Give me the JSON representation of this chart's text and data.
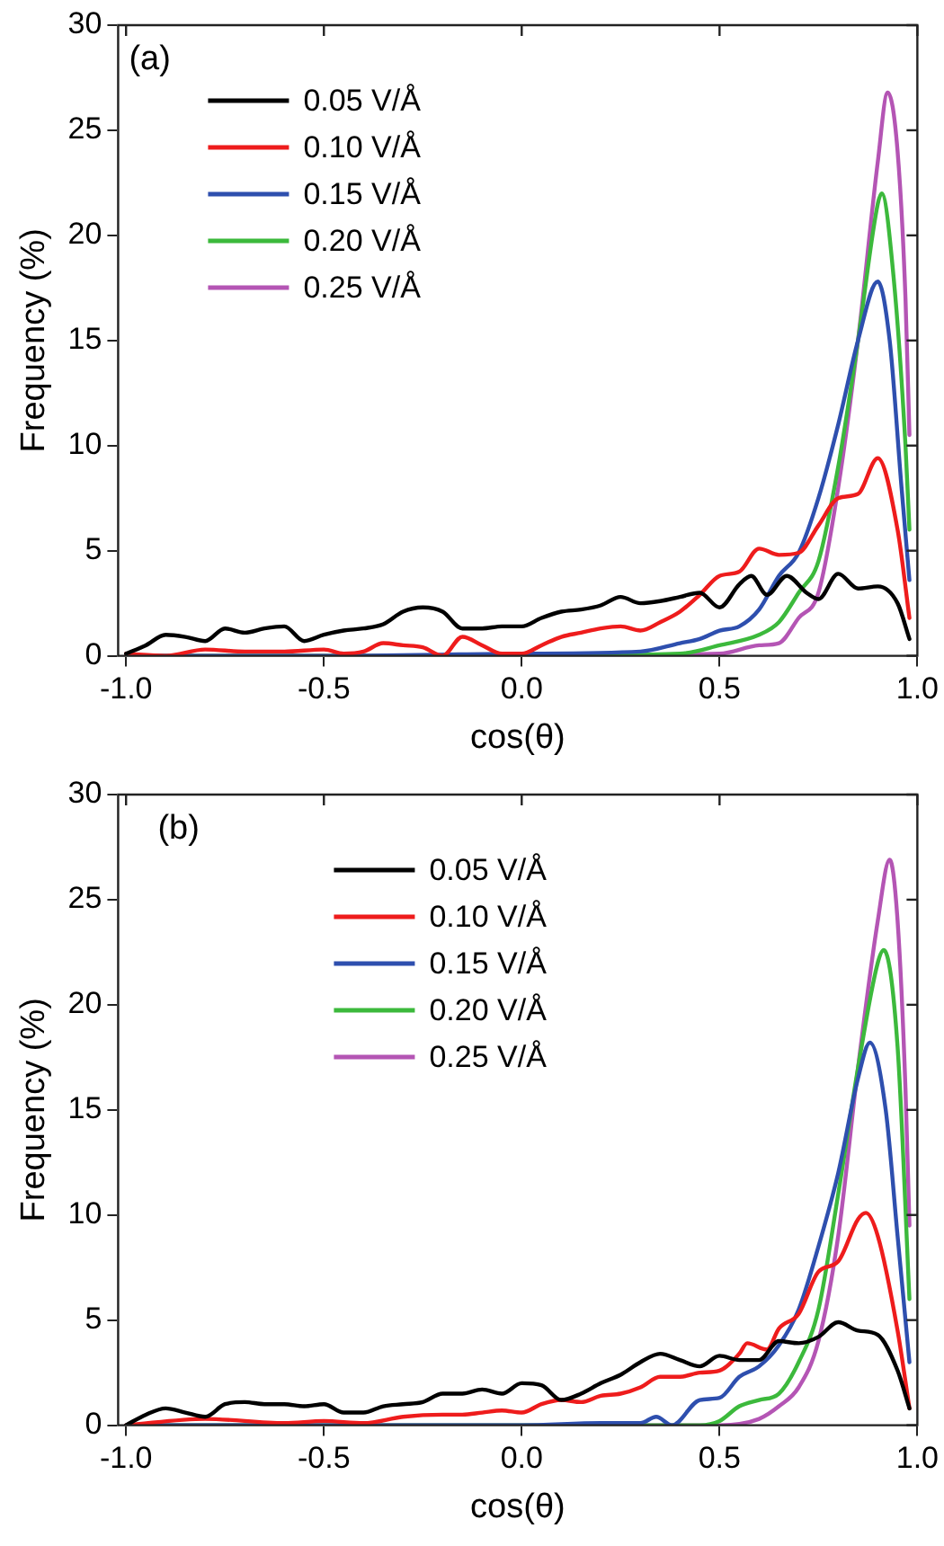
{
  "chart_data": [
    {
      "type": "line",
      "xlabel": "cos(θ)",
      "ylabel": "Frequency (%)",
      "annotations": [
        "(a)"
      ],
      "xlim": [
        -1.02,
        1.0
      ],
      "ylim": [
        0,
        30
      ],
      "xticks": [
        {
          "value": -1,
          "label": "-1.0"
        },
        {
          "value": -0.5,
          "label": "-0.5"
        },
        {
          "value": 0,
          "label": "0.0"
        },
        {
          "value": 0.5,
          "label": "0.5"
        },
        {
          "value": 1,
          "label": "1.0"
        }
      ],
      "yticks": [
        0,
        5,
        10,
        15,
        20,
        25,
        30
      ],
      "grid": false,
      "legend": "top left",
      "marker": "none",
      "line_style": "solid",
      "series": [
        {
          "name": "0.05 V/Å",
          "color": "#000000",
          "x": [
            -1,
            -0.95,
            -0.9,
            -0.85,
            -0.8,
            -0.75,
            -0.7,
            -0.65,
            -0.6,
            -0.55,
            -0.5,
            -0.45,
            -0.4,
            -0.35,
            -0.3,
            -0.25,
            -0.2,
            -0.15,
            -0.1,
            -0.05,
            0,
            0.05,
            0.1,
            0.15,
            0.2,
            0.25,
            0.3,
            0.35,
            0.4,
            0.45,
            0.5,
            0.55,
            0.58,
            0.62,
            0.67,
            0.72,
            0.75,
            0.8,
            0.85,
            0.9,
            0.95,
            0.98
          ],
          "values": [
            0.1,
            0.5,
            1.0,
            0.9,
            0.7,
            1.3,
            1.1,
            1.3,
            1.4,
            0.7,
            1.0,
            1.2,
            1.3,
            1.5,
            2.1,
            2.3,
            2.1,
            1.3,
            1.3,
            1.4,
            1.4,
            1.8,
            2.1,
            2.2,
            2.4,
            2.8,
            2.5,
            2.6,
            2.8,
            3.0,
            2.3,
            3.4,
            3.8,
            2.9,
            3.8,
            3.0,
            2.7,
            3.9,
            3.2,
            3.3,
            2.5,
            0.8
          ]
        },
        {
          "name": "0.10 V/Å",
          "color": "#ee1c1c",
          "x": [
            -1,
            -0.9,
            -0.8,
            -0.7,
            -0.6,
            -0.5,
            -0.45,
            -0.4,
            -0.35,
            -0.3,
            -0.25,
            -0.2,
            -0.15,
            -0.1,
            -0.05,
            0,
            0.05,
            0.1,
            0.15,
            0.2,
            0.25,
            0.3,
            0.35,
            0.4,
            0.45,
            0.5,
            0.55,
            0.6,
            0.65,
            0.7,
            0.75,
            0.8,
            0.85,
            0.9,
            0.95,
            0.98
          ],
          "values": [
            0.1,
            0,
            0.3,
            0.2,
            0.2,
            0.3,
            0.1,
            0.2,
            0.6,
            0.5,
            0.4,
            0,
            0.9,
            0.5,
            0.1,
            0.1,
            0.5,
            0.9,
            1.1,
            1.3,
            1.4,
            1.2,
            1.6,
            2.1,
            2.9,
            3.8,
            4.0,
            5.1,
            4.8,
            4.9,
            6.2,
            7.5,
            7.7,
            9.4,
            6.0,
            1.8
          ]
        },
        {
          "name": "0.15 V/Å",
          "color": "#2e4fae",
          "x": [
            -1,
            -0.5,
            0,
            0.3,
            0.4,
            0.45,
            0.5,
            0.55,
            0.6,
            0.65,
            0.7,
            0.75,
            0.8,
            0.85,
            0.9,
            0.93,
            0.96,
            0.98
          ],
          "values": [
            0,
            0,
            0.1,
            0.2,
            0.6,
            0.8,
            1.2,
            1.4,
            2.2,
            3.8,
            4.9,
            7.5,
            11,
            15,
            17.8,
            15,
            8,
            3.6
          ]
        },
        {
          "name": "0.20 V/Å",
          "color": "#3cb93c",
          "x": [
            -1,
            0,
            0.4,
            0.5,
            0.6,
            0.65,
            0.7,
            0.75,
            0.8,
            0.85,
            0.9,
            0.91,
            0.94,
            0.97,
            0.98
          ],
          "values": [
            0,
            0,
            0.1,
            0.5,
            1.0,
            1.6,
            3.0,
            4.5,
            9,
            15,
            21.5,
            22,
            18,
            10,
            6
          ]
        },
        {
          "name": "0.25 V/Å",
          "color": "#b455b4",
          "x": [
            -1,
            0,
            0.5,
            0.6,
            0.65,
            0.7,
            0.75,
            0.8,
            0.85,
            0.9,
            0.925,
            0.95,
            0.97,
            0.98
          ],
          "values": [
            0,
            0,
            0.1,
            0.5,
            0.6,
            1.8,
            3,
            8,
            15,
            23.5,
            26.8,
            24,
            17,
            10.5
          ]
        }
      ]
    },
    {
      "type": "line",
      "xlabel": "cos(θ)",
      "ylabel": "Frequency (%)",
      "annotations": [
        "(b)"
      ],
      "xlim": [
        -1.02,
        1.0
      ],
      "ylim": [
        0,
        30
      ],
      "xticks": [
        {
          "value": -1,
          "label": "-1.0"
        },
        {
          "value": -0.5,
          "label": "-0.5"
        },
        {
          "value": 0,
          "label": "0.0"
        },
        {
          "value": 0.5,
          "label": "0.5"
        },
        {
          "value": 1,
          "label": "1.0"
        }
      ],
      "yticks": [
        0,
        5,
        10,
        15,
        20,
        25,
        30
      ],
      "grid": false,
      "legend": "top",
      "marker": "none",
      "line_style": "solid",
      "series": [
        {
          "name": "0.05 V/Å",
          "color": "#000000",
          "x": [
            -1,
            -0.95,
            -0.9,
            -0.85,
            -0.8,
            -0.75,
            -0.7,
            -0.65,
            -0.6,
            -0.55,
            -0.5,
            -0.45,
            -0.4,
            -0.35,
            -0.3,
            -0.25,
            -0.2,
            -0.15,
            -0.1,
            -0.05,
            0,
            0.05,
            0.1,
            0.15,
            0.2,
            0.25,
            0.3,
            0.35,
            0.4,
            0.45,
            0.5,
            0.55,
            0.6,
            0.65,
            0.7,
            0.75,
            0.8,
            0.85,
            0.9,
            0.95,
            0.98
          ],
          "values": [
            0,
            0.5,
            0.8,
            0.6,
            0.4,
            1.0,
            1.1,
            1.0,
            1.0,
            0.9,
            1.0,
            0.6,
            0.6,
            0.9,
            1.0,
            1.1,
            1.5,
            1.5,
            1.7,
            1.5,
            2.0,
            1.9,
            1.2,
            1.5,
            2.0,
            2.4,
            3.0,
            3.4,
            3.1,
            2.8,
            3.3,
            3.1,
            3.1,
            4.0,
            3.9,
            4.2,
            4.9,
            4.5,
            4.3,
            2.6,
            0.8
          ]
        },
        {
          "name": "0.10 V/Å",
          "color": "#ee1c1c",
          "x": [
            -1,
            -0.8,
            -0.6,
            -0.5,
            -0.4,
            -0.3,
            -0.2,
            -0.15,
            -0.1,
            -0.05,
            0,
            0.05,
            0.1,
            0.15,
            0.2,
            0.25,
            0.3,
            0.35,
            0.4,
            0.45,
            0.5,
            0.55,
            0.57,
            0.62,
            0.65,
            0.7,
            0.75,
            0.8,
            0.85,
            0.87,
            0.9,
            0.95,
            0.98
          ],
          "values": [
            0,
            0.3,
            0.1,
            0.2,
            0.1,
            0.4,
            0.5,
            0.5,
            0.6,
            0.7,
            0.6,
            1.0,
            1.2,
            1.1,
            1.4,
            1.5,
            1.8,
            2.3,
            2.3,
            2.5,
            2.6,
            3.4,
            3.9,
            3.6,
            4.6,
            5.3,
            7.3,
            7.8,
            9.8,
            10.1,
            9,
            4.5,
            0.8
          ]
        },
        {
          "name": "0.15 V/Å",
          "color": "#2e4fae",
          "x": [
            -1,
            0,
            0.2,
            0.3,
            0.34,
            0.38,
            0.45,
            0.5,
            0.55,
            0.6,
            0.65,
            0.7,
            0.75,
            0.8,
            0.85,
            0.88,
            0.92,
            0.95,
            0.98
          ],
          "values": [
            0,
            0,
            0.1,
            0.1,
            0.4,
            0,
            1.2,
            1.3,
            2.3,
            2.8,
            3.8,
            5.5,
            8.5,
            12,
            16.5,
            18.2,
            15,
            9,
            3
          ]
        },
        {
          "name": "0.20 V/Å",
          "color": "#3cb93c",
          "x": [
            -1,
            0,
            0.45,
            0.5,
            0.55,
            0.6,
            0.65,
            0.7,
            0.75,
            0.8,
            0.85,
            0.9,
            0.915,
            0.95,
            0.98
          ],
          "values": [
            0,
            0,
            0,
            0.2,
            0.9,
            1.2,
            1.5,
            3.0,
            5.5,
            11,
            17,
            22,
            22.6,
            18,
            6
          ]
        },
        {
          "name": "0.25 V/Å",
          "color": "#b455b4",
          "x": [
            -1,
            0,
            0.5,
            0.6,
            0.65,
            0.7,
            0.75,
            0.8,
            0.85,
            0.9,
            0.93,
            0.95,
            0.97,
            0.98
          ],
          "values": [
            0,
            0,
            0,
            0.3,
            0.9,
            1.8,
            4,
            9,
            17,
            24,
            26.9,
            24,
            16,
            9.5
          ]
        }
      ]
    }
  ]
}
